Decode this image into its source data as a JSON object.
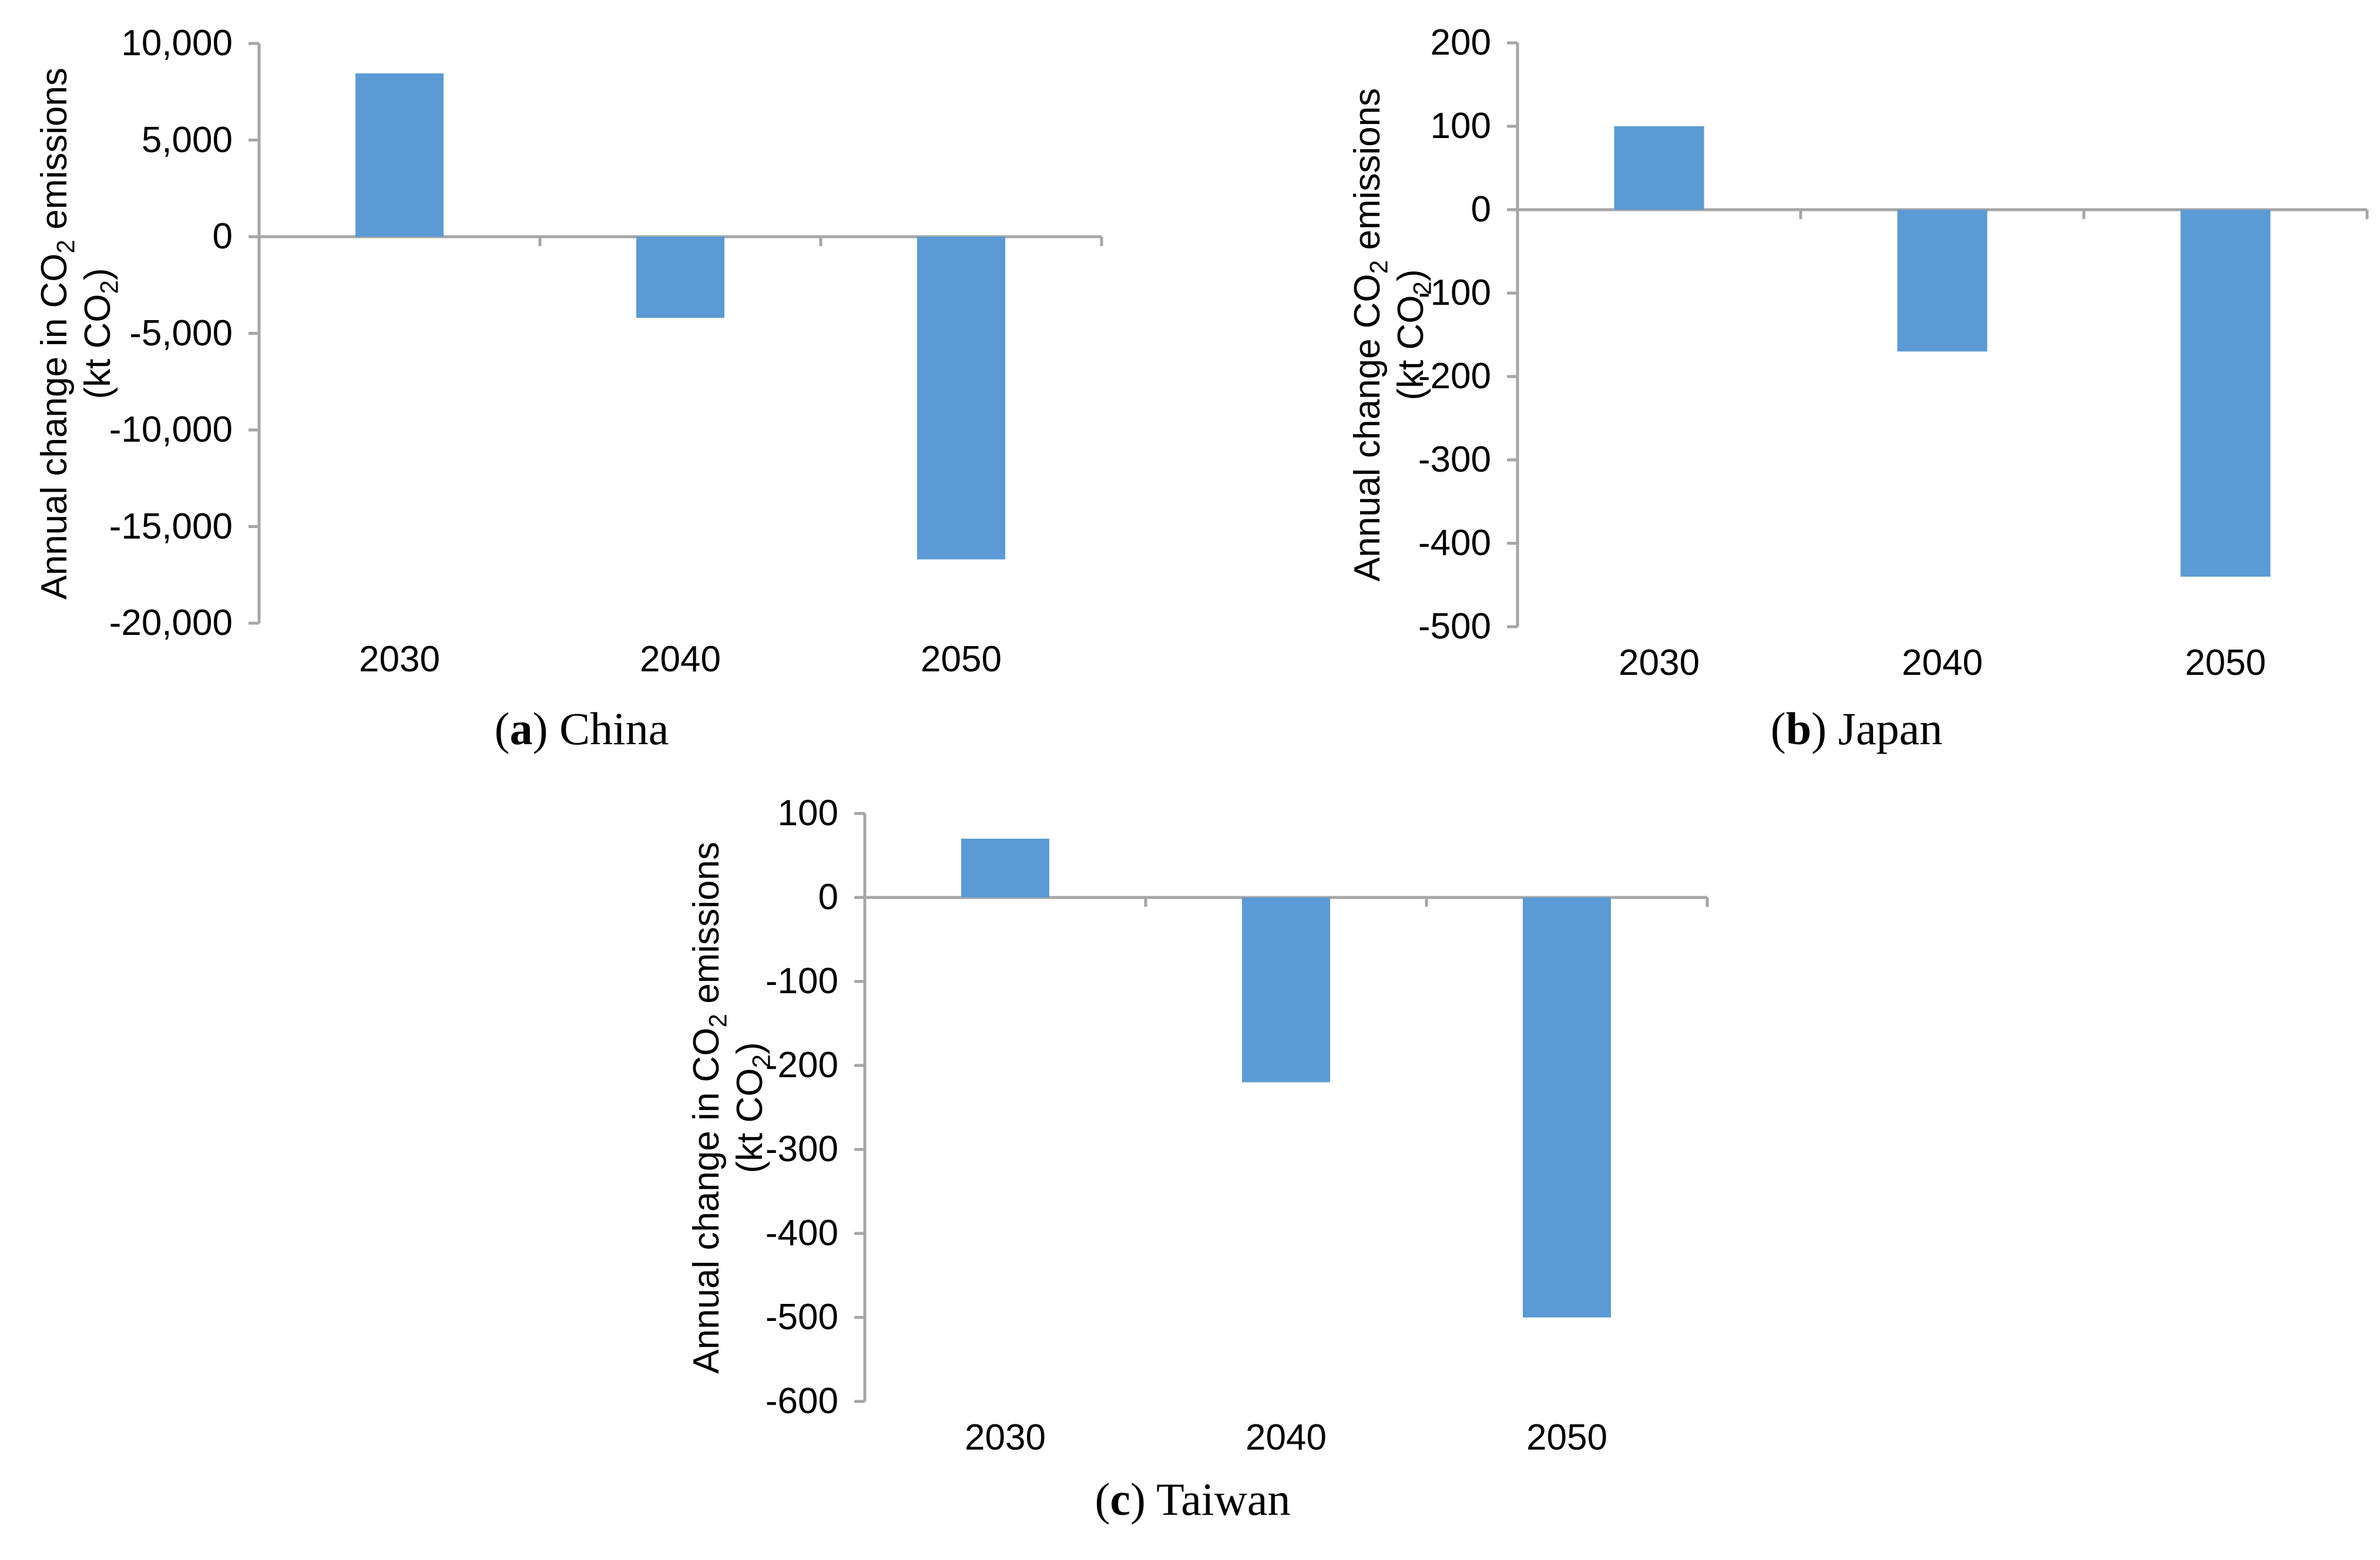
{
  "figure": {
    "background": "#ffffff"
  },
  "style": {
    "bar_color": "#5b9ad5",
    "axis_color": "#a6a6a6",
    "text_color": "#000000"
  },
  "chart_data": [
    {
      "type": "bar",
      "id": "a",
      "caption": {
        "letter": "a",
        "name": "China"
      },
      "y_title_lines": [
        "Annual change in CO2 emissions",
        "(kt CO2)"
      ],
      "categories": [
        "2030",
        "2040",
        "2050"
      ],
      "values": [
        8450,
        -4200,
        -16700
      ],
      "ylim": [
        -20000,
        10000
      ],
      "y_step": 5000,
      "y_tick_labels": [
        "10,000",
        "5,000",
        "0",
        "-5,000",
        "-10,000",
        "-15,000",
        "-20,000"
      ],
      "xlabel": "",
      "ylabel": "Annual change in CO2 emissions (kt CO2)",
      "grid": false,
      "legend": null
    },
    {
      "type": "bar",
      "id": "b",
      "caption": {
        "letter": "b",
        "name": "Japan"
      },
      "y_title_lines": [
        "Annual change CO2 emissions",
        "(kt CO2)"
      ],
      "categories": [
        "2030",
        "2040",
        "2050"
      ],
      "values": [
        100,
        -170,
        -440
      ],
      "ylim": [
        -500,
        200
      ],
      "y_step": 100,
      "y_tick_labels": [
        "200",
        "100",
        "0",
        "-100",
        "-200",
        "-300",
        "-400",
        "-500"
      ],
      "xlabel": "",
      "ylabel": "Annual change CO2 emissions (kt CO2)",
      "grid": false,
      "legend": null
    },
    {
      "type": "bar",
      "id": "c",
      "caption": {
        "letter": "c",
        "name": "Taiwan"
      },
      "y_title_lines": [
        "Annual change in CO2 emissions",
        "(kt CO2)"
      ],
      "categories": [
        "2030",
        "2040",
        "2050"
      ],
      "values": [
        70,
        -220,
        -500
      ],
      "ylim": [
        -600,
        100
      ],
      "y_step": 100,
      "y_tick_labels": [
        "100",
        "0",
        "-100",
        "-200",
        "-300",
        "-400",
        "-500",
        "-600"
      ],
      "xlabel": "",
      "ylabel": "Annual change in CO2 emissions (kt CO2)",
      "grid": false,
      "legend": null
    }
  ]
}
